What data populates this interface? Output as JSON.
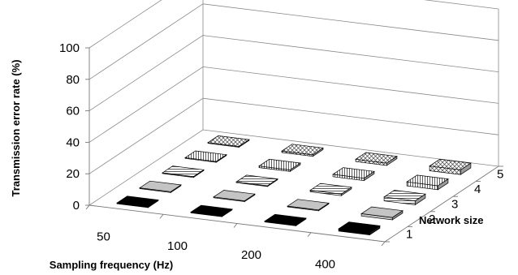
{
  "chart_data": {
    "type": "bar3d",
    "title": "",
    "ylabel": "Transmission error rate (%)",
    "xlabel": "Sampling frequency (Hz)",
    "zlabel": "Network size",
    "categories": [
      "50",
      "100",
      "200",
      "400"
    ],
    "ylim": [
      0,
      100
    ],
    "yticks": [
      "0",
      "20",
      "40",
      "60",
      "80",
      "100"
    ],
    "series": [
      {
        "name": "1",
        "values": [
          0.5,
          0.5,
          0.5,
          1.5
        ]
      },
      {
        "name": "2",
        "values": [
          0.5,
          0.5,
          0.5,
          1.5
        ]
      },
      {
        "name": "3",
        "values": [
          0.5,
          0.5,
          1.0,
          2.5
        ]
      },
      {
        "name": "4",
        "values": [
          0.5,
          1.0,
          1.5,
          2.5
        ]
      },
      {
        "name": "5",
        "values": [
          0.5,
          1.0,
          1.5,
          3.0
        ]
      }
    ],
    "grid": true,
    "legend": "none",
    "fills": [
      "#000000",
      "#bdbdbd",
      "#e2e2e2",
      "#e9e9e9",
      "#f2f2f2"
    ]
  }
}
